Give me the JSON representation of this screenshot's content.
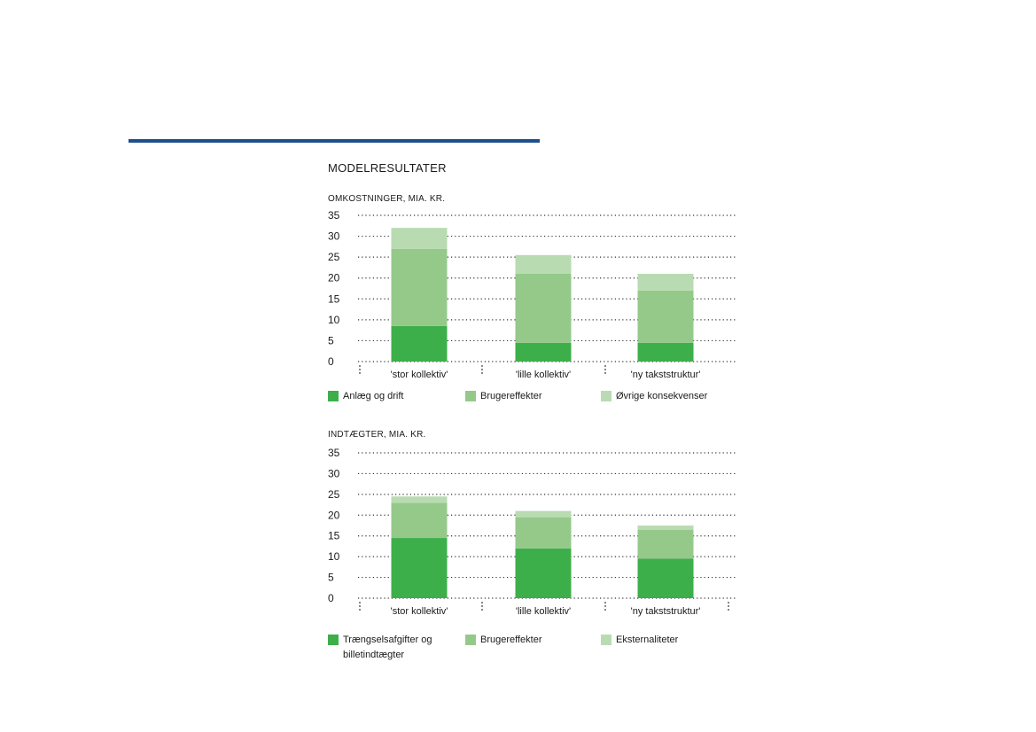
{
  "title": "MODELRESULTATER",
  "colors": {
    "rule": "#1f4e8c",
    "dark_green": "#3daf4a",
    "mid_green": "#95c98a",
    "light_green": "#b9dbb2"
  },
  "chart_data": [
    {
      "type": "bar",
      "stacked": true,
      "label": "OMKOSTNINGER, MIA. KR.",
      "categories": [
        "'stor kollektiv'",
        "'lille kollektiv'",
        "'ny takststruktur'"
      ],
      "yticks": [
        0,
        5,
        10,
        15,
        20,
        25,
        30,
        35
      ],
      "ylim": [
        0,
        35
      ],
      "grid": "dotted",
      "series": [
        {
          "name": "Anlæg og drift",
          "color": "#3daf4a",
          "values": [
            8.5,
            4.5,
            4.5
          ]
        },
        {
          "name": "Brugereffekter",
          "color": "#95c98a",
          "values": [
            18.5,
            16.5,
            12.5
          ]
        },
        {
          "name": "Øvrige konsekvenser",
          "color": "#b9dbb2",
          "values": [
            5,
            4.5,
            4
          ]
        }
      ]
    },
    {
      "type": "bar",
      "stacked": true,
      "label": "INDTÆGTER, MIA. KR.",
      "categories": [
        "'stor kollektiv'",
        "'lille kollektiv'",
        "'ny takststruktur'"
      ],
      "yticks": [
        0,
        5,
        10,
        15,
        20,
        25,
        30,
        35
      ],
      "ylim": [
        0,
        35
      ],
      "grid": "dotted",
      "series": [
        {
          "name": "Trængselsafgifter og billetindtægter",
          "color": "#3daf4a",
          "values": [
            14.5,
            12,
            9.5
          ]
        },
        {
          "name": "Brugereffekter",
          "color": "#95c98a",
          "values": [
            8.5,
            7.5,
            7
          ]
        },
        {
          "name": "Eksternaliteter",
          "color": "#b9dbb2",
          "values": [
            1.5,
            1.5,
            1
          ]
        }
      ]
    }
  ]
}
